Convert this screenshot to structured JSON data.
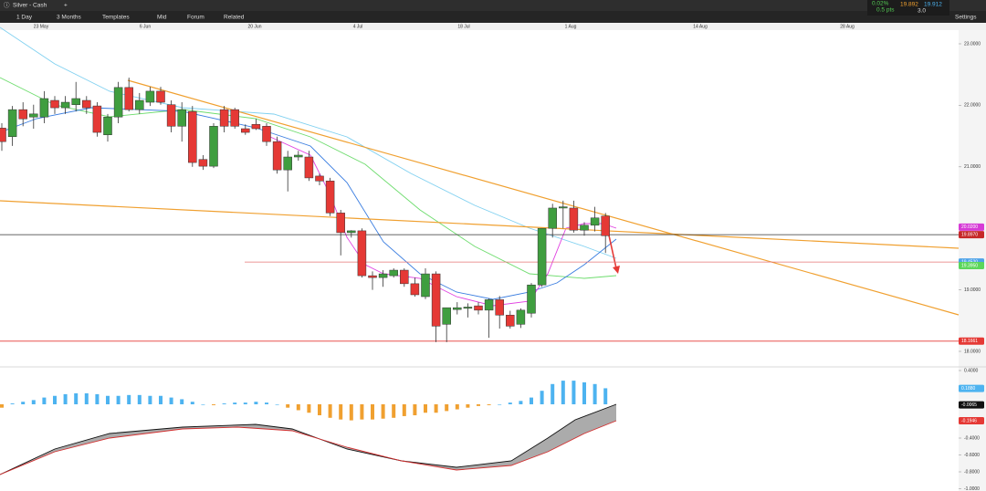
{
  "toolbar": {
    "instrument": "Silver - Cash",
    "tabs": [
      "1 Day",
      "3 Months",
      "Templates",
      "Mid",
      "Forum",
      "Related"
    ],
    "settings": "Settings"
  },
  "quote": {
    "change_pct": "0.02%",
    "change_pts": "0.5 pts",
    "bid": "19.892",
    "ask": "19.912",
    "spread": "3.0"
  },
  "dates": [
    "23 May",
    "6 Jun",
    "20 Jun",
    "4 Jul",
    "18 Jul",
    "1 Aug",
    "14 Aug",
    "28 Aug"
  ],
  "price_ticks": [
    {
      "value": 23,
      "label": "23.0000"
    },
    {
      "value": 22,
      "label": "22.0000"
    },
    {
      "value": 21,
      "label": "21.0000"
    },
    {
      "value": 19,
      "label": "19.0000"
    },
    {
      "value": 18,
      "label": "18.0000"
    }
  ],
  "price_tags": [
    {
      "value": 20.02,
      "label": "20.0200",
      "color": "#d63bd6"
    },
    {
      "value": 19.897,
      "label": "19.8970",
      "color": "#c62828"
    },
    {
      "value": 19.452,
      "label": "19.4520",
      "color": "#4da3e8"
    },
    {
      "value": 19.395,
      "label": "19.3950",
      "color": "#5cd65c"
    },
    {
      "value": 18.1661,
      "label": "18.1661",
      "color": "#e53935"
    }
  ],
  "macd_ticks": [
    {
      "value": 0.4,
      "label": "0.4000"
    },
    {
      "value": -0.4,
      "label": "-0.4000"
    },
    {
      "value": -0.6,
      "label": "-0.6000"
    },
    {
      "value": -0.8,
      "label": "-0.8000"
    },
    {
      "value": -1,
      "label": "-1.0000"
    }
  ],
  "macd_tags": [
    {
      "value": 0.188,
      "label": "0.1880",
      "color": "#4db3f0"
    },
    {
      "value": -0.0065,
      "label": "-0.0065",
      "color": "#111"
    },
    {
      "value": -0.1946,
      "label": "-0.1946",
      "color": "#e53935"
    }
  ],
  "candles": [
    {
      "o": 21.63,
      "h": 21.71,
      "l": 21.26,
      "c": 21.41
    },
    {
      "o": 21.49,
      "h": 21.99,
      "l": 21.34,
      "c": 21.93
    },
    {
      "o": 21.93,
      "h": 22.05,
      "l": 21.66,
      "c": 21.78
    },
    {
      "o": 21.81,
      "h": 22.01,
      "l": 21.62,
      "c": 21.86
    },
    {
      "o": 21.81,
      "h": 22.23,
      "l": 21.71,
      "c": 22.11
    },
    {
      "o": 22.08,
      "h": 22.15,
      "l": 21.86,
      "c": 21.96
    },
    {
      "o": 21.96,
      "h": 22.15,
      "l": 21.86,
      "c": 22.05
    },
    {
      "o": 22.01,
      "h": 22.38,
      "l": 21.9,
      "c": 22.11
    },
    {
      "o": 22.08,
      "h": 22.15,
      "l": 21.86,
      "c": 21.96
    },
    {
      "o": 21.99,
      "h": 22.05,
      "l": 21.49,
      "c": 21.56
    },
    {
      "o": 21.52,
      "h": 21.86,
      "l": 21.41,
      "c": 21.81
    },
    {
      "o": 21.81,
      "h": 22.38,
      "l": 21.71,
      "c": 22.29
    },
    {
      "o": 22.29,
      "h": 22.45,
      "l": 21.9,
      "c": 21.93
    },
    {
      "o": 21.93,
      "h": 22.2,
      "l": 21.86,
      "c": 22.08
    },
    {
      "o": 22.05,
      "h": 22.3,
      "l": 21.99,
      "c": 22.23
    },
    {
      "o": 22.23,
      "h": 22.3,
      "l": 22.01,
      "c": 22.05
    },
    {
      "o": 22.01,
      "h": 22.08,
      "l": 21.56,
      "c": 21.66
    },
    {
      "o": 21.66,
      "h": 22.05,
      "l": 21.41,
      "c": 21.93
    },
    {
      "o": 21.9,
      "h": 21.99,
      "l": 21,
      "c": 21.07
    },
    {
      "o": 21.12,
      "h": 21.19,
      "l": 20.95,
      "c": 21.01
    },
    {
      "o": 21.01,
      "h": 21.71,
      "l": 20.98,
      "c": 21.66
    },
    {
      "o": 21.93,
      "h": 21.99,
      "l": 21.56,
      "c": 21.66
    },
    {
      "o": 21.93,
      "h": 21.96,
      "l": 21.62,
      "c": 21.66
    },
    {
      "o": 21.62,
      "h": 21.69,
      "l": 21.52,
      "c": 21.56
    },
    {
      "o": 21.69,
      "h": 21.78,
      "l": 21.6,
      "c": 21.62
    },
    {
      "o": 21.66,
      "h": 21.71,
      "l": 21.34,
      "c": 21.41
    },
    {
      "o": 21.41,
      "h": 21.49,
      "l": 20.89,
      "c": 20.95
    },
    {
      "o": 20.95,
      "h": 21.26,
      "l": 20.6,
      "c": 21.16
    },
    {
      "o": 21.16,
      "h": 21.26,
      "l": 21.1,
      "c": 21.19
    },
    {
      "o": 21.16,
      "h": 21.26,
      "l": 20.77,
      "c": 20.82
    },
    {
      "o": 20.85,
      "h": 20.89,
      "l": 20.7,
      "c": 20.77
    },
    {
      "o": 20.77,
      "h": 20.82,
      "l": 20.2,
      "c": 20.25
    },
    {
      "o": 20.25,
      "h": 20.3,
      "l": 19.56,
      "c": 19.93
    },
    {
      "o": 19.93,
      "h": 19.97,
      "l": 19.85,
      "c": 19.96
    },
    {
      "o": 19.96,
      "h": 20,
      "l": 19.2,
      "c": 19.23
    },
    {
      "o": 19.23,
      "h": 19.3,
      "l": 19,
      "c": 19.2
    },
    {
      "o": 19.2,
      "h": 19.32,
      "l": 19.05,
      "c": 19.26
    },
    {
      "o": 19.23,
      "h": 19.35,
      "l": 19.2,
      "c": 19.32
    },
    {
      "o": 19.32,
      "h": 19.35,
      "l": 19.05,
      "c": 19.1
    },
    {
      "o": 19.1,
      "h": 19.2,
      "l": 18.89,
      "c": 18.92
    },
    {
      "o": 18.89,
      "h": 19.35,
      "l": 18.85,
      "c": 19.26
    },
    {
      "o": 19.26,
      "h": 19.3,
      "l": 18.15,
      "c": 18.41
    },
    {
      "o": 18.44,
      "h": 18.71,
      "l": 18.15,
      "c": 18.71
    },
    {
      "o": 18.68,
      "h": 18.8,
      "l": 18.6,
      "c": 18.71
    },
    {
      "o": 18.7,
      "h": 18.78,
      "l": 18.55,
      "c": 18.72
    },
    {
      "o": 18.74,
      "h": 18.8,
      "l": 18.6,
      "c": 18.67
    },
    {
      "o": 18.67,
      "h": 18.86,
      "l": 18.22,
      "c": 18.84
    },
    {
      "o": 18.84,
      "h": 18.9,
      "l": 18.37,
      "c": 18.59
    },
    {
      "o": 18.59,
      "h": 18.66,
      "l": 18.37,
      "c": 18.41
    },
    {
      "o": 18.44,
      "h": 18.7,
      "l": 18.38,
      "c": 18.67
    },
    {
      "o": 18.62,
      "h": 19.11,
      "l": 18.55,
      "c": 19.08
    },
    {
      "o": 19.08,
      "h": 20,
      "l": 19.05,
      "c": 20
    },
    {
      "o": 20,
      "h": 20.4,
      "l": 19.85,
      "c": 20.33
    },
    {
      "o": 20.33,
      "h": 20.45,
      "l": 20,
      "c": 20.35
    },
    {
      "o": 20.33,
      "h": 20.45,
      "l": 19.93,
      "c": 19.97
    },
    {
      "o": 19.97,
      "h": 20.1,
      "l": 19.88,
      "c": 20.05
    },
    {
      "o": 20.05,
      "h": 20.35,
      "l": 19.95,
      "c": 20.17
    },
    {
      "o": 20.2,
      "h": 20.25,
      "l": 19.6,
      "c": 19.88
    }
  ],
  "macd_histogram": [
    -0.04,
    0.01,
    0.03,
    0.05,
    0.08,
    0.1,
    0.12,
    0.13,
    0.13,
    0.12,
    0.1,
    0.1,
    0.11,
    0.11,
    0.1,
    0.1,
    0.08,
    0.06,
    0.03,
    0.0,
    -0.01,
    0.01,
    0.02,
    0.02,
    0.03,
    0.02,
    0.0,
    -0.04,
    -0.07,
    -0.1,
    -0.13,
    -0.16,
    -0.18,
    -0.19,
    -0.18,
    -0.18,
    -0.17,
    -0.16,
    -0.14,
    -0.13,
    -0.1,
    -0.1,
    -0.08,
    -0.06,
    -0.04,
    -0.02,
    -0.01,
    0.0,
    0.02,
    0.04,
    0.08,
    0.16,
    0.24,
    0.28,
    0.28,
    0.26,
    0.24,
    0.19
  ]
}
